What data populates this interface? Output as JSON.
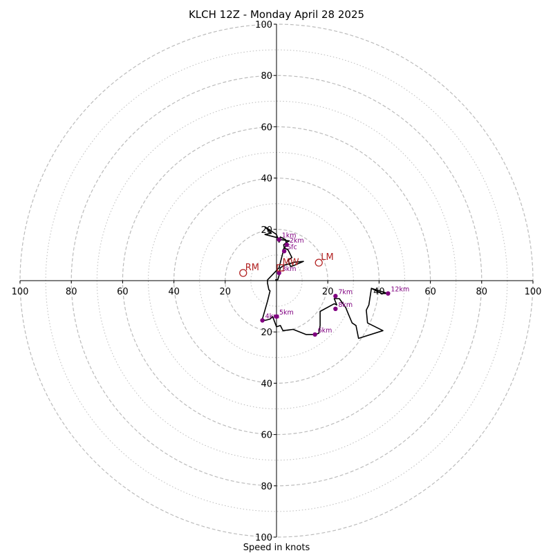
{
  "chart_data": {
    "type": "hodograph",
    "title": "KLCH 12Z - Monday April 28 2025",
    "xlabel": "Speed in knots",
    "units": "knots",
    "max_speed": 100,
    "rings_major": [
      20,
      40,
      60,
      80,
      100
    ],
    "rings_minor": [
      10,
      30,
      50,
      70,
      90
    ],
    "x_tick_labels": [
      "100",
      "80",
      "60",
      "40",
      "20",
      "20",
      "40",
      "60",
      "80",
      "100"
    ],
    "y_tick_labels_top": [
      "20",
      "40",
      "60",
      "80",
      "100"
    ],
    "y_tick_labels_bottom": [
      "20",
      "40",
      "60",
      "80",
      "100"
    ],
    "grid": true,
    "colors": {
      "hodograph_line": "#000000",
      "height_markers": "#800080",
      "storm_motion": "#b22222",
      "grid": "#bbbbbb"
    },
    "hodograph": [
      [
        -0.5,
        0.3
      ],
      [
        0.5,
        0.4
      ],
      [
        1,
        2
      ],
      [
        1,
        3
      ],
      [
        1.5,
        5
      ],
      [
        3,
        6
      ],
      [
        7,
        7.2
      ],
      [
        10.5,
        7.5
      ],
      [
        7,
        6
      ],
      [
        5.5,
        5.5
      ],
      [
        4.5,
        8
      ],
      [
        6,
        9
      ],
      [
        4.5,
        12
      ],
      [
        3,
        12.8
      ],
      [
        2.8,
        14
      ],
      [
        4,
        15
      ],
      [
        5,
        15.5
      ],
      [
        1.5,
        16
      ],
      [
        1,
        15
      ],
      [
        0,
        18
      ],
      [
        -4.5,
        21
      ],
      [
        -2,
        18.5
      ],
      [
        -4.5,
        18
      ],
      [
        1.3,
        16.5
      ],
      [
        1.5,
        17
      ],
      [
        3.5,
        16
      ],
      [
        4,
        14
      ],
      [
        2.5,
        12
      ],
      [
        2.5,
        11
      ],
      [
        1,
        5
      ],
      [
        -3.5,
        0.3
      ],
      [
        -3.5,
        -1
      ],
      [
        -3,
        -3.5
      ],
      [
        -2.5,
        -4
      ],
      [
        -3.5,
        -8
      ],
      [
        -5.5,
        -15
      ],
      [
        -4.5,
        -15.5
      ],
      [
        -2.5,
        -15
      ],
      [
        -1.5,
        -14
      ],
      [
        0,
        -18
      ],
      [
        1.5,
        -17.5
      ],
      [
        2.5,
        -19.5
      ],
      [
        6.5,
        -19
      ],
      [
        11.5,
        -21
      ],
      [
        15,
        -21
      ],
      [
        16.5,
        -20.5
      ],
      [
        17,
        -17.5
      ],
      [
        17,
        -12
      ],
      [
        22.5,
        -9
      ],
      [
        23.5,
        -9.5
      ],
      [
        22.5,
        -7
      ],
      [
        24.5,
        -7
      ],
      [
        27,
        -10.5
      ],
      [
        28,
        -13
      ],
      [
        29.5,
        -16.5
      ],
      [
        31,
        -17.5
      ],
      [
        32,
        -22.5
      ],
      [
        41.5,
        -19.5
      ],
      [
        35.5,
        -16.5
      ],
      [
        35,
        -11.5
      ],
      [
        36,
        -9.5
      ],
      [
        37,
        -3
      ],
      [
        43.5,
        -5
      ],
      [
        41,
        -5
      ],
      [
        37,
        -3
      ]
    ],
    "height_markers": [
      {
        "label": "Sfc",
        "u": 3,
        "v": 11.5
      },
      {
        "label": "1km",
        "u": 1,
        "v": 16
      },
      {
        "label": "2km",
        "u": 4,
        "v": 14
      },
      {
        "label": "3km",
        "u": 1,
        "v": 3
      },
      {
        "label": "4km",
        "u": -5.5,
        "v": -15.5
      },
      {
        "label": "5km",
        "u": 0,
        "v": -14
      },
      {
        "label": "6km",
        "u": 15,
        "v": -21
      },
      {
        "label": "7km",
        "u": 23,
        "v": -6
      },
      {
        "label": "8km",
        "u": 23,
        "v": -11
      },
      {
        "label": "12km",
        "u": 43.5,
        "v": -5
      }
    ],
    "storm_motion": [
      {
        "label": "RM",
        "u": -13,
        "v": 3,
        "marker": "circle"
      },
      {
        "label": "LM",
        "u": 16.5,
        "v": 7,
        "marker": "circle"
      },
      {
        "label": "MW",
        "u": 1.5,
        "v": 5,
        "marker": "square"
      }
    ]
  }
}
